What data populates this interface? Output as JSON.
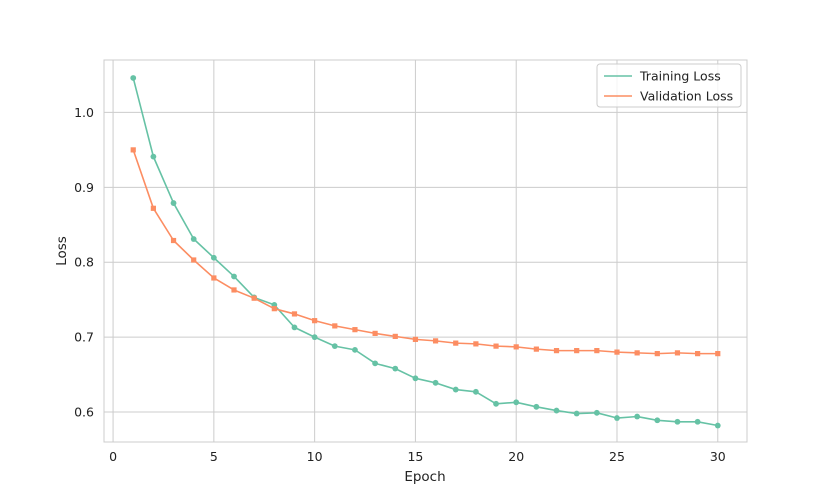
{
  "chart_data": {
    "type": "line",
    "title": "",
    "xlabel": "Epoch",
    "ylabel": "Loss",
    "xlim": [
      -0.45,
      31.45
    ],
    "ylim": [
      0.56,
      1.07
    ],
    "xticks": [
      0,
      5,
      10,
      15,
      20,
      25,
      30
    ],
    "yticks": [
      0.6,
      0.7,
      0.8,
      0.9,
      1.0
    ],
    "xtick_labels": [
      "0",
      "5",
      "10",
      "15",
      "20",
      "25",
      "30"
    ],
    "ytick_labels": [
      "0.6",
      "0.7",
      "0.8",
      "0.9",
      "1.0"
    ],
    "grid": true,
    "legend_position": "top-right",
    "x": [
      1,
      2,
      3,
      4,
      5,
      6,
      7,
      8,
      9,
      10,
      11,
      12,
      13,
      14,
      15,
      16,
      17,
      18,
      19,
      20,
      21,
      22,
      23,
      24,
      25,
      26,
      27,
      28,
      29,
      30
    ],
    "series": [
      {
        "name": "Training Loss",
        "color": "#66c2a5",
        "marker": "circle",
        "values": [
          1.046,
          0.941,
          0.879,
          0.831,
          0.806,
          0.781,
          0.753,
          0.743,
          0.713,
          0.7,
          0.688,
          0.683,
          0.665,
          0.658,
          0.645,
          0.639,
          0.63,
          0.627,
          0.611,
          0.613,
          0.607,
          0.602,
          0.598,
          0.599,
          0.592,
          0.594,
          0.589,
          0.587,
          0.587,
          0.582
        ]
      },
      {
        "name": "Validation Loss",
        "color": "#fc8d62",
        "marker": "square",
        "values": [
          0.95,
          0.872,
          0.829,
          0.803,
          0.779,
          0.763,
          0.752,
          0.738,
          0.731,
          0.722,
          0.715,
          0.71,
          0.705,
          0.701,
          0.697,
          0.695,
          0.692,
          0.691,
          0.688,
          0.687,
          0.684,
          0.682,
          0.682,
          0.682,
          0.68,
          0.679,
          0.678,
          0.679,
          0.678,
          0.678
        ]
      }
    ]
  }
}
